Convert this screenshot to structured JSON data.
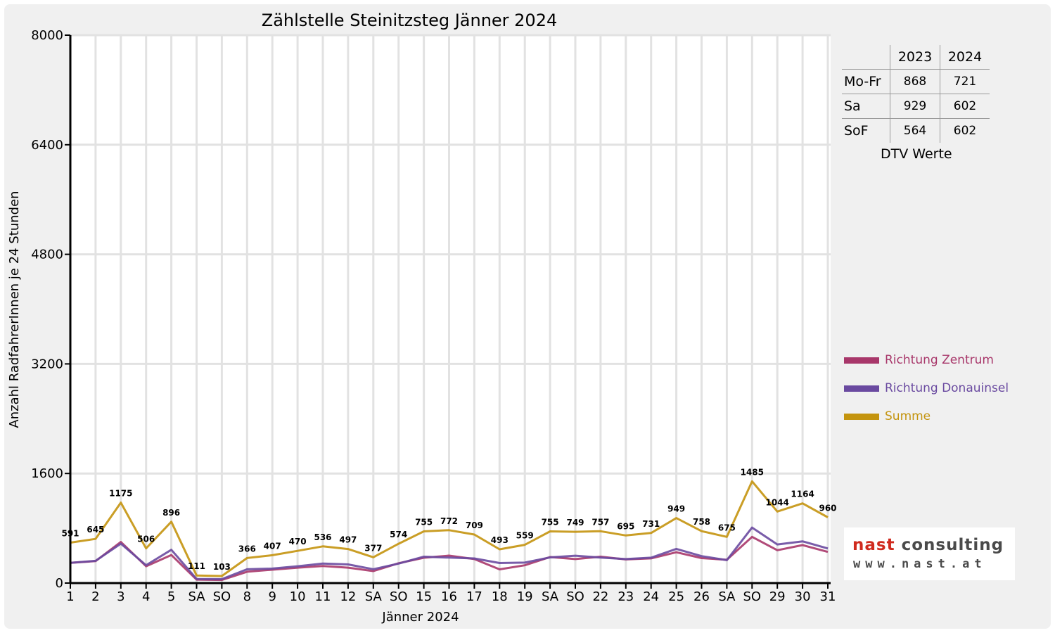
{
  "chart_data": {
    "type": "line",
    "title": "Zählstelle Steinitzsteg Jänner 2024",
    "xlabel": "Jänner 2024",
    "ylabel": "Anzahl RadfahrerInnen je 24 Stunden",
    "ylim": [
      0,
      8000
    ],
    "yticks": [
      0,
      1600,
      3200,
      4800,
      6400,
      8000
    ],
    "grid": true,
    "legend_position": "right",
    "categories": [
      "1",
      "2",
      "3",
      "4",
      "5",
      "SA",
      "SO",
      "8",
      "9",
      "10",
      "11",
      "12",
      "SA",
      "SO",
      "15",
      "16",
      "17",
      "18",
      "19",
      "SA",
      "SO",
      "22",
      "23",
      "24",
      "25",
      "26",
      "SA",
      "SO",
      "29",
      "30",
      "31"
    ],
    "category_colors": [
      "#e00000",
      "#000000",
      "#000000",
      "#000000",
      "#000000",
      "#000000",
      "#e00000",
      "#000000",
      "#000000",
      "#000000",
      "#000000",
      "#000000",
      "#000000",
      "#e00000",
      "#000000",
      "#000000",
      "#000000",
      "#000000",
      "#000000",
      "#000000",
      "#e00000",
      "#000000",
      "#000000",
      "#000000",
      "#000000",
      "#000000",
      "#000000",
      "#e00000",
      "#000000",
      "#000000",
      "#000000"
    ],
    "series": [
      {
        "name": "Richtung Zentrum",
        "color": "#a8376a",
        "values": [
          296,
          320,
          600,
          245,
          410,
          50,
          45,
          165,
          195,
          225,
          250,
          225,
          175,
          290,
          370,
          400,
          350,
          200,
          260,
          380,
          350,
          385,
          345,
          360,
          450,
          365,
          340,
          675,
          480,
          555,
          455
        ]
      },
      {
        "name": "Richtung Donauinsel",
        "color": "#6a4aa0",
        "values": [
          295,
          325,
          575,
          261,
          486,
          61,
          58,
          201,
          212,
          245,
          286,
          272,
          202,
          284,
          385,
          372,
          359,
          293,
          299,
          375,
          399,
          372,
          350,
          371,
          499,
          393,
          335,
          810,
          564,
          609,
          505
        ]
      },
      {
        "name": "Summe",
        "color": "#c4940e",
        "values": [
          591,
          645,
          1175,
          506,
          896,
          111,
          103,
          366,
          407,
          470,
          536,
          497,
          377,
          574,
          755,
          772,
          709,
          493,
          559,
          755,
          749,
          757,
          695,
          731,
          949,
          758,
          675,
          1485,
          1044,
          1164,
          960
        ]
      }
    ],
    "data_labels": [
      "591",
      "645",
      "1175",
      "506",
      "896",
      "111",
      "103",
      "366",
      "407",
      "470",
      "536",
      "497",
      "377",
      "574",
      "755",
      "772",
      "709",
      "493",
      "559",
      "755",
      "749",
      "757",
      "695",
      "731",
      "949",
      "758",
      "675",
      "1485",
      "1044",
      "1164",
      "960"
    ]
  },
  "dtv_table": {
    "headers": [
      "",
      "2023",
      "2024"
    ],
    "rows": [
      {
        "label": "Mo-Fr",
        "v2023": "868",
        "v2024": "721"
      },
      {
        "label": "Sa",
        "v2023": "929",
        "v2024": "602"
      },
      {
        "label": "SoF",
        "v2023": "564",
        "v2024": "602"
      }
    ],
    "caption": "DTV Werte"
  },
  "logo": {
    "name_part1": "nast",
    "name_part2": "consulting",
    "url": "www.nast.at"
  }
}
